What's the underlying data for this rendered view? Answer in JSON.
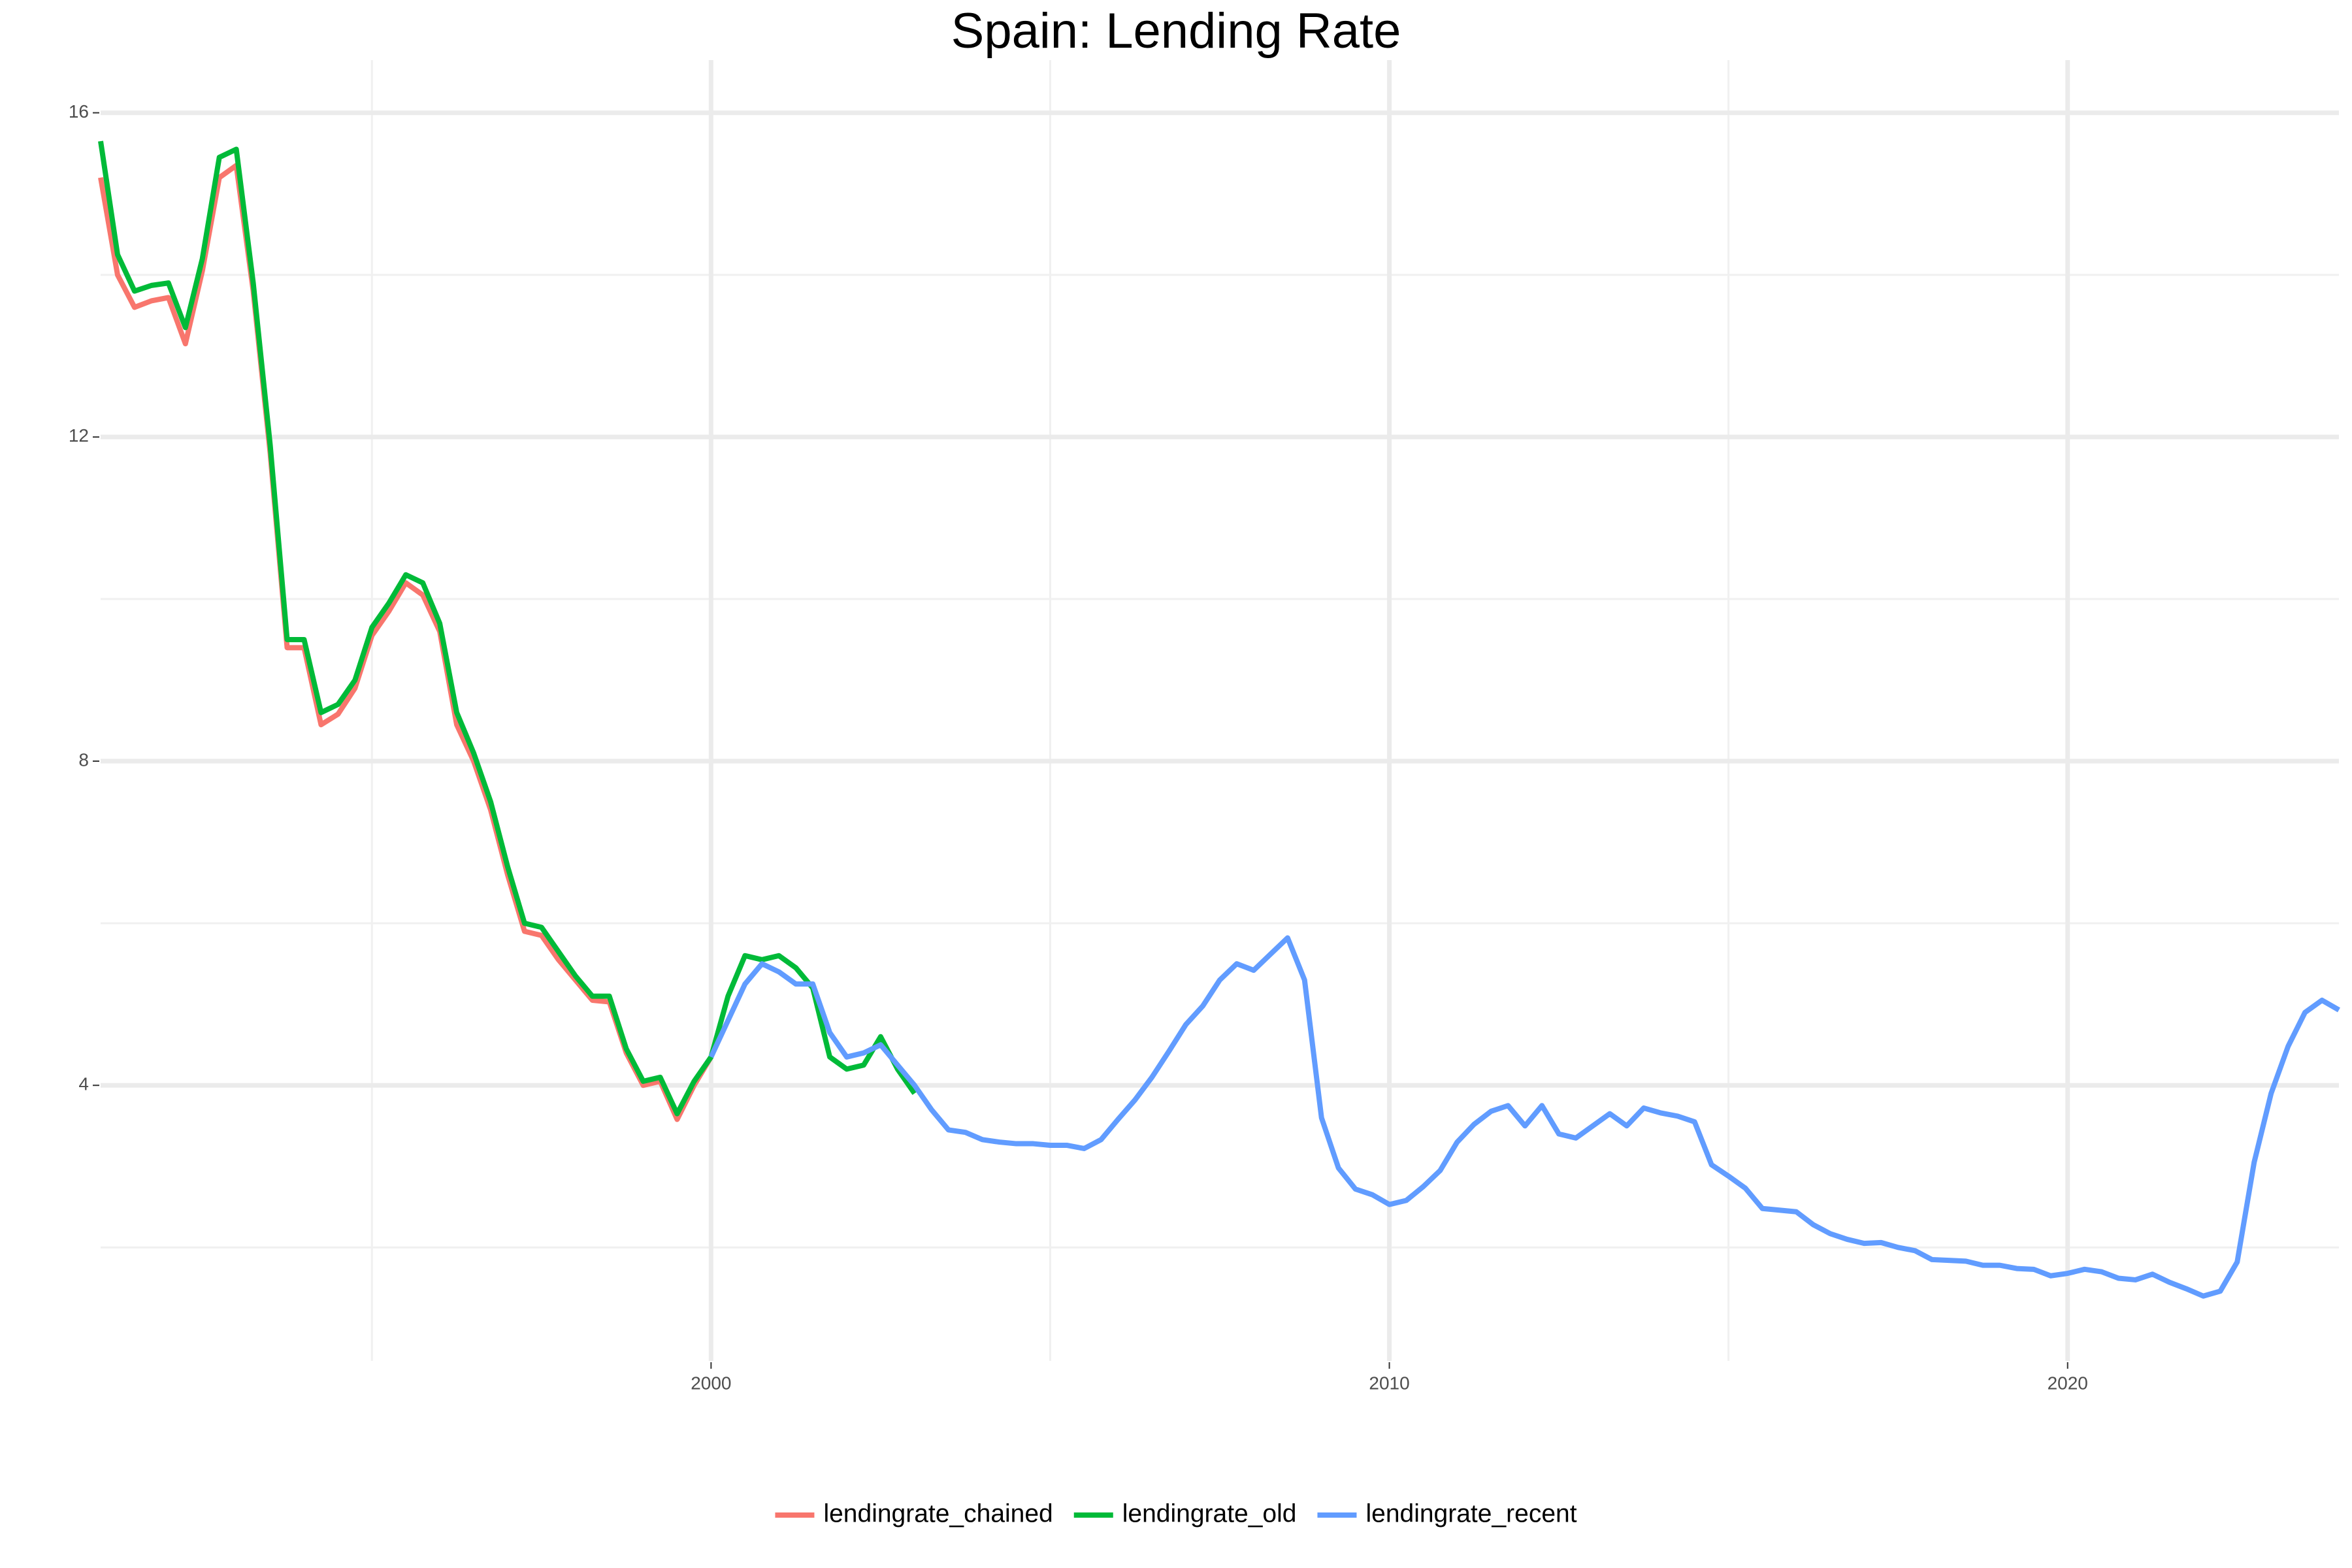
{
  "chart_data": {
    "type": "line",
    "title": "Spain: Lending Rate",
    "xlim": [
      1991,
      2024
    ],
    "xticks": [
      2000,
      2010,
      2020
    ],
    "xminor": [
      1995,
      2005,
      2015
    ],
    "ylim": [
      0.6,
      16.65
    ],
    "yticks": [
      4,
      8,
      12,
      16
    ],
    "yminor": [
      2,
      6,
      10,
      14
    ],
    "grid": true,
    "legend": "bottom",
    "series": [
      {
        "name": "lendingrate_chained",
        "color": "#F8766D",
        "x": [
          1991,
          1991.25,
          1991.5,
          1991.75,
          1992,
          1992.25,
          1992.5,
          1992.75,
          1993,
          1993.25,
          1993.5,
          1993.75,
          1994,
          1994.25,
          1994.5,
          1994.75,
          1995,
          1995.25,
          1995.5,
          1995.75,
          1996,
          1996.25,
          1996.5,
          1996.75,
          1997,
          1997.25,
          1997.5,
          1997.75,
          1998,
          1998.25,
          1998.5,
          1998.75,
          1999,
          1999.25,
          1999.5,
          1999.75,
          2000
        ],
        "values": [
          15.2,
          14.0,
          13.6,
          13.68,
          13.72,
          13.15,
          14.05,
          15.2,
          15.35,
          13.8,
          11.8,
          9.4,
          9.4,
          8.45,
          8.58,
          8.9,
          9.55,
          9.85,
          10.2,
          10.05,
          9.6,
          8.45,
          8.0,
          7.4,
          6.6,
          5.9,
          5.85,
          5.55,
          5.3,
          5.05,
          5.03,
          4.4,
          4.0,
          4.05,
          3.58,
          4.0,
          4.35
        ]
      },
      {
        "name": "lendingrate_old",
        "color": "#00BA38",
        "x": [
          1991,
          1991.25,
          1991.5,
          1991.75,
          1992,
          1992.25,
          1992.5,
          1992.75,
          1993,
          1993.25,
          1993.5,
          1993.75,
          1994,
          1994.25,
          1994.5,
          1994.75,
          1995,
          1995.25,
          1995.5,
          1995.75,
          1996,
          1996.25,
          1996.5,
          1996.75,
          1997,
          1997.25,
          1997.5,
          1997.75,
          1998,
          1998.25,
          1998.5,
          1998.75,
          1999,
          1999.25,
          1999.5,
          1999.75,
          2000,
          2000.25,
          2000.5,
          2000.75,
          2001,
          2001.25,
          2001.5,
          2001.75,
          2002,
          2002.25,
          2002.5,
          2002.75,
          2003
        ],
        "values": [
          15.65,
          14.25,
          13.8,
          13.87,
          13.9,
          13.35,
          14.2,
          15.45,
          15.55,
          13.9,
          11.9,
          9.5,
          9.5,
          8.6,
          8.7,
          9.0,
          9.65,
          9.95,
          10.3,
          10.2,
          9.7,
          8.6,
          8.1,
          7.5,
          6.7,
          6.0,
          5.95,
          5.65,
          5.35,
          5.1,
          5.1,
          4.45,
          4.05,
          4.1,
          3.65,
          4.05,
          4.35,
          5.1,
          5.6,
          5.55,
          5.6,
          5.45,
          5.2,
          4.35,
          4.2,
          4.25,
          4.6,
          4.2,
          3.9
        ]
      },
      {
        "name": "lendingrate_recent",
        "color": "#619CFF",
        "x": [
          2000,
          2000.25,
          2000.5,
          2000.75,
          2001,
          2001.25,
          2001.5,
          2001.75,
          2002,
          2002.25,
          2002.5,
          2002.75,
          2003,
          2003.25,
          2003.5,
          2003.75,
          2004,
          2004.25,
          2004.5,
          2004.75,
          2005,
          2005.25,
          2005.5,
          2005.75,
          2006,
          2006.25,
          2006.5,
          2006.75,
          2007,
          2007.25,
          2007.5,
          2007.75,
          2008,
          2008.25,
          2008.5,
          2008.75,
          2009,
          2009.25,
          2009.5,
          2009.75,
          2010,
          2010.25,
          2010.5,
          2010.75,
          2011,
          2011.25,
          2011.5,
          2011.75,
          2012,
          2012.25,
          2012.5,
          2012.75,
          2013,
          2013.25,
          2013.5,
          2013.75,
          2014,
          2014.25,
          2014.5,
          2014.75,
          2015,
          2015.25,
          2015.5,
          2015.75,
          2016,
          2016.25,
          2016.5,
          2016.75,
          2017,
          2017.25,
          2017.5,
          2017.75,
          2018,
          2018.25,
          2018.5,
          2018.75,
          2019,
          2019.25,
          2019.5,
          2019.75,
          2020,
          2020.25,
          2020.5,
          2020.75,
          2021,
          2021.25,
          2021.5,
          2021.75,
          2022,
          2022.25,
          2022.5,
          2022.75,
          2023,
          2023.25,
          2023.5,
          2023.75,
          2024
        ],
        "values": [
          4.35,
          4.8,
          5.25,
          5.5,
          5.4,
          5.25,
          5.25,
          4.65,
          4.35,
          4.4,
          4.5,
          4.25,
          4.0,
          3.7,
          3.45,
          3.42,
          3.33,
          3.3,
          3.28,
          3.28,
          3.26,
          3.26,
          3.22,
          3.33,
          3.58,
          3.82,
          4.1,
          4.42,
          4.75,
          4.98,
          5.3,
          5.5,
          5.42,
          5.62,
          5.82,
          5.3,
          3.6,
          2.98,
          2.72,
          2.65,
          2.53,
          2.58,
          2.75,
          2.95,
          3.3,
          3.52,
          3.68,
          3.75,
          3.5,
          3.75,
          3.4,
          3.35,
          3.5,
          3.65,
          3.5,
          3.72,
          3.66,
          3.62,
          3.55,
          3.02,
          2.88,
          2.73,
          2.48,
          2.46,
          2.44,
          2.28,
          2.17,
          2.1,
          2.05,
          2.06,
          2.0,
          1.96,
          1.85,
          1.84,
          1.83,
          1.78,
          1.78,
          1.74,
          1.73,
          1.65,
          1.68,
          1.73,
          1.7,
          1.62,
          1.6,
          1.67,
          1.57,
          1.49,
          1.4,
          1.46,
          1.82,
          3.05,
          3.9,
          4.48,
          4.9,
          5.05,
          4.93
        ]
      }
    ]
  }
}
